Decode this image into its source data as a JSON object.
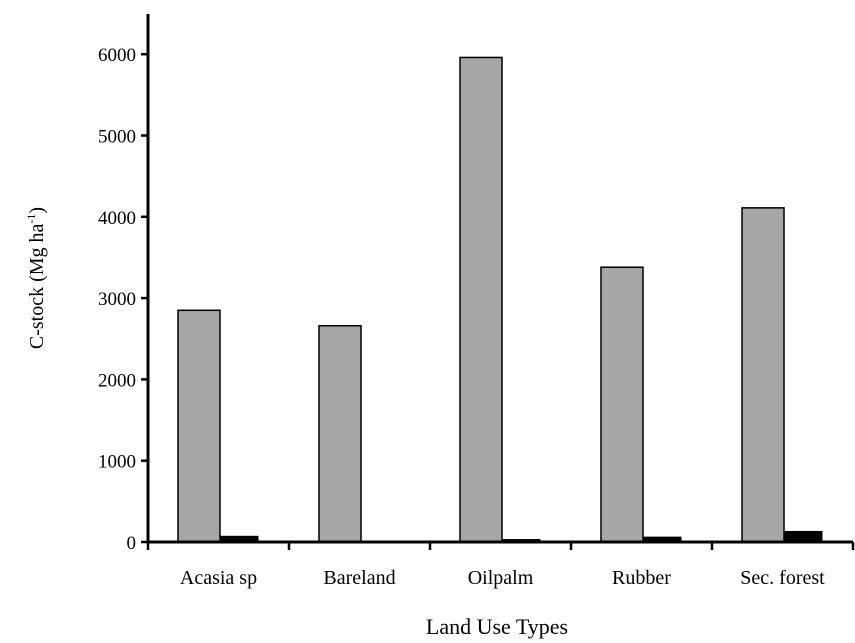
{
  "chart_data": {
    "type": "bar",
    "title": "",
    "categories": [
      "Acasia sp",
      "Bareland",
      "Oilpalm",
      "Rubber",
      "Sec. forest"
    ],
    "series": [
      {
        "values": [
          2850,
          2660,
          5960,
          3380,
          4110
        ],
        "color": "#a6a6a6"
      },
      {
        "values": [
          70,
          0,
          30,
          60,
          130
        ],
        "color": "#000000"
      }
    ],
    "xlabel": "Land Use Types",
    "ylabel": "C-stock (Mg ha-1)",
    "ylabel_parts": {
      "main": "C-stock (Mg ha",
      "superscript": "-1",
      "close": ")"
    },
    "ylim": [
      0,
      6500
    ],
    "yticks": [
      0,
      1000,
      2000,
      3000,
      4000,
      5000,
      6000
    ],
    "grid": false,
    "legend": "none"
  }
}
